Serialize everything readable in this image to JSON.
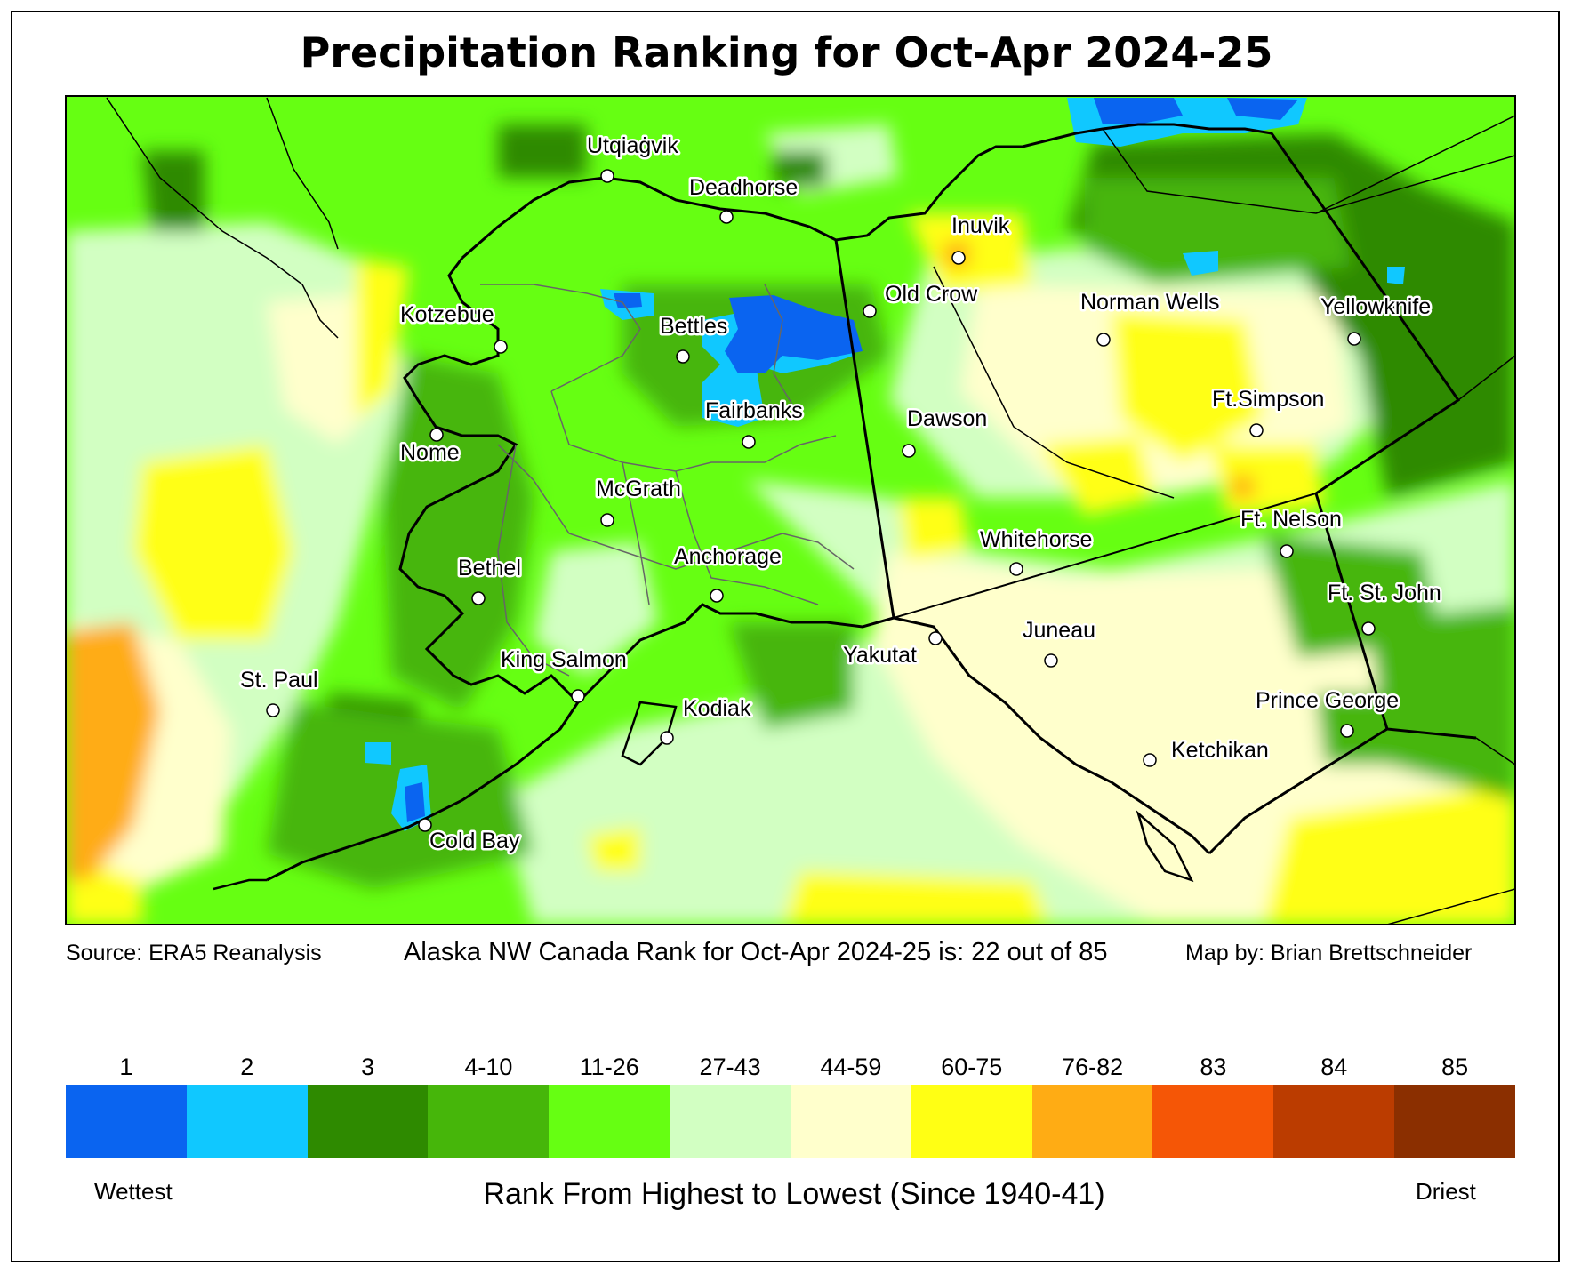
{
  "title": "Precipitation Ranking for Oct-Apr 2024-25",
  "footer": {
    "source": "Source: ERA5 Reanalysis",
    "region_rank": "Alaska NW Canada Rank for Oct-Apr 2024-25 is: 22 out of 85",
    "credit": "Map by: Brian Brettschneider"
  },
  "legend": {
    "title": "Rank From Highest to Lowest (Since 1940-41)",
    "wettest": "Wettest",
    "driest": "Driest",
    "bins": [
      {
        "label": "1",
        "color": "#0a64f0"
      },
      {
        "label": "2",
        "color": "#10c8ff"
      },
      {
        "label": "3",
        "color": "#2e8a00"
      },
      {
        "label": "4-10",
        "color": "#46b60a"
      },
      {
        "label": "11-26",
        "color": "#66ff12"
      },
      {
        "label": "27-43",
        "color": "#d2ffc2"
      },
      {
        "label": "44-59",
        "color": "#ffffcc"
      },
      {
        "label": "60-75",
        "color": "#ffff14"
      },
      {
        "label": "76-82",
        "color": "#ffac14"
      },
      {
        "label": "83",
        "color": "#f55606"
      },
      {
        "label": "84",
        "color": "#bb3c00"
      },
      {
        "label": "85",
        "color": "#8b2f00"
      }
    ]
  },
  "cities": [
    {
      "name": "Utqiaġvik"
    },
    {
      "name": "Deadhorse"
    },
    {
      "name": "Inuvik"
    },
    {
      "name": "Old Crow"
    },
    {
      "name": "Norman Wells"
    },
    {
      "name": "Yellowknife"
    },
    {
      "name": "Kotzebue"
    },
    {
      "name": "Bettles"
    },
    {
      "name": "Fairbanks"
    },
    {
      "name": "Dawson"
    },
    {
      "name": "Ft.Simpson"
    },
    {
      "name": "Nome"
    },
    {
      "name": "McGrath"
    },
    {
      "name": "Whitehorse"
    },
    {
      "name": "Ft. Nelson"
    },
    {
      "name": "Bethel"
    },
    {
      "name": "Anchorage"
    },
    {
      "name": "Ft. St. John"
    },
    {
      "name": "Juneau"
    },
    {
      "name": "St. Paul"
    },
    {
      "name": "King Salmon"
    },
    {
      "name": "Yakutat"
    },
    {
      "name": "Kodiak"
    },
    {
      "name": "Prince George"
    },
    {
      "name": "Ketchikan"
    },
    {
      "name": "Cold Bay"
    }
  ]
}
